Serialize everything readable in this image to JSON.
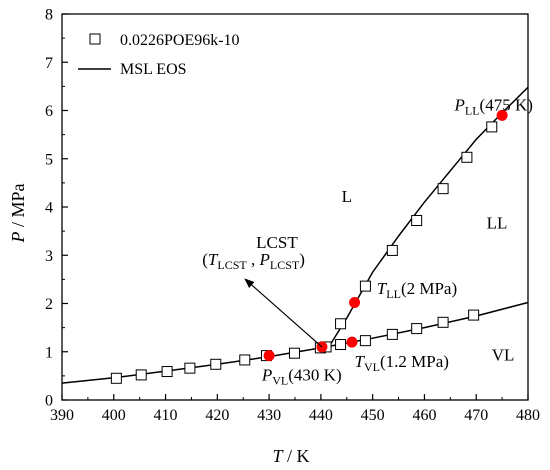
{
  "chart_data": {
    "type": "scatter",
    "title": "",
    "xlabel": {
      "italic": "T",
      "rest": " / K"
    },
    "ylabel": {
      "italic": "P",
      "rest": " / MPa"
    },
    "xlim": [
      390,
      480
    ],
    "ylim": [
      0,
      8
    ],
    "xticks": [
      "390",
      "400",
      "410",
      "420",
      "430",
      "440",
      "450",
      "460",
      "470",
      "480"
    ],
    "yticks": [
      "0",
      "1",
      "2",
      "3",
      "4",
      "5",
      "6",
      "7",
      "8"
    ],
    "grid": false,
    "legend_position": "top-left",
    "legend": [
      {
        "label": "0.0226POE96k-10",
        "kind": "square-marker"
      },
      {
        "label": "MSL EOS",
        "kind": "line"
      }
    ],
    "series": [
      {
        "name": "0.0226POE96k-10",
        "kind": "markers",
        "points": [
          [
            400.5,
            0.45
          ],
          [
            405.3,
            0.52
          ],
          [
            410.3,
            0.59
          ],
          [
            414.7,
            0.66
          ],
          [
            419.7,
            0.74
          ],
          [
            425.3,
            0.83
          ],
          [
            429.5,
            0.92
          ],
          [
            434.9,
            0.97
          ],
          [
            439.9,
            1.08
          ],
          [
            441.0,
            1.1
          ],
          [
            443.8,
            1.15
          ],
          [
            443.8,
            1.58
          ],
          [
            448.6,
            1.23
          ],
          [
            448.6,
            2.36
          ],
          [
            453.8,
            1.36
          ],
          [
            453.8,
            3.1
          ],
          [
            458.5,
            1.48
          ],
          [
            458.5,
            3.72
          ],
          [
            463.6,
            1.61
          ],
          [
            463.6,
            4.38
          ],
          [
            468.2,
            5.03
          ],
          [
            469.5,
            1.76
          ],
          [
            473.0,
            5.66
          ]
        ]
      },
      {
        "name": "MSL EOS VL boundary",
        "kind": "line",
        "points": [
          [
            390,
            0.35
          ],
          [
            400,
            0.46
          ],
          [
            410,
            0.6
          ],
          [
            420,
            0.74
          ],
          [
            430,
            0.9
          ],
          [
            440,
            1.08
          ],
          [
            450,
            1.28
          ],
          [
            460,
            1.5
          ],
          [
            470,
            1.74
          ],
          [
            480,
            2.02
          ]
        ]
      },
      {
        "name": "MSL EOS LL boundary",
        "kind": "line",
        "points": [
          [
            440.5,
            1.1
          ],
          [
            442,
            1.18
          ],
          [
            445,
            1.7
          ],
          [
            450,
            2.65
          ],
          [
            455,
            3.4
          ],
          [
            460,
            4.1
          ],
          [
            465,
            4.75
          ],
          [
            470,
            5.4
          ],
          [
            475,
            5.95
          ],
          [
            480,
            6.48
          ]
        ]
      },
      {
        "name": "highlight",
        "kind": "red-dots",
        "points": [
          [
            430,
            0.92
          ],
          [
            440.2,
            1.1
          ],
          [
            446.0,
            1.2
          ],
          [
            446.5,
            2.02
          ],
          [
            475,
            5.9
          ]
        ]
      }
    ],
    "annotations": {
      "region_L": {
        "text": "L",
        "x": 444,
        "y": 4.1
      },
      "region_LL": {
        "text": "LL",
        "x": 472,
        "y": 3.55
      },
      "region_VL": {
        "text": "VL",
        "x": 473,
        "y": 0.82
      },
      "lcst_label": {
        "line1": "LCST",
        "x": 427.5,
        "y": 3.15,
        "line2_x": 427,
        "line2_y": 2.8
      },
      "lcst_line2": {
        "open": "(",
        "t_main": "T",
        "t_sub": "LCST",
        "sep": " , ",
        "p_main": "P",
        "p_sub": "LCST",
        "close": ")"
      },
      "lcst_arrow": {
        "from": [
          440.2,
          1.1
        ],
        "to": [
          425.2,
          2.52
        ]
      },
      "p_ll": {
        "main": "P",
        "sub": "LL",
        "rest": "(475 K)",
        "x": 465.8,
        "y": 6.0
      },
      "t_ll": {
        "main": "T",
        "sub": "LL",
        "rest": "(2 MPa)",
        "x": 450.8,
        "y": 2.2
      },
      "t_vl": {
        "main": "T",
        "sub": "VL",
        "rest": "(1.2 MPa)",
        "x": 446.5,
        "y": 0.68
      },
      "p_vl": {
        "main": "P",
        "sub": "VL",
        "rest": "(430 K)",
        "x": 428.6,
        "y": 0.4
      }
    }
  }
}
